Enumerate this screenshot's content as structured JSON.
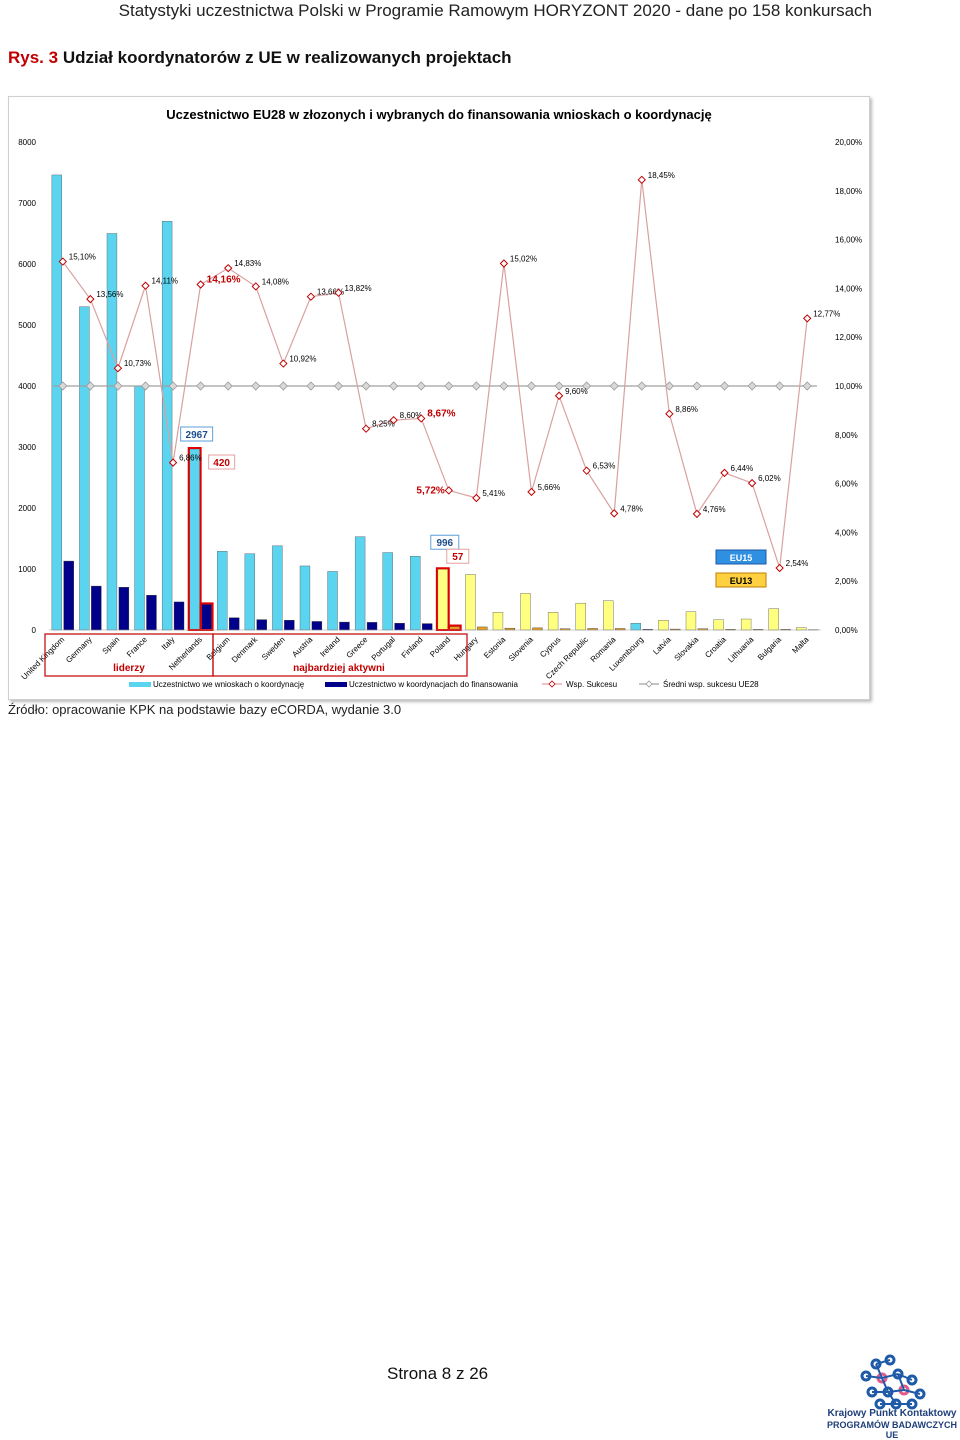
{
  "header": {
    "running_title": "Statystyki uczestnictwa Polski w Programie Ramowym HORYZONT 2020 - dane po 158 konkursach"
  },
  "figure": {
    "label": "Rys. 3",
    "caption": "Udział koordynatorów z UE w realizowanych projektach",
    "source": "Źródło: opracowanie KPK na podstawie bazy eCORDA, wydanie 3.0"
  },
  "footer": {
    "page": "Strona 8 z 26",
    "logo_line1": "Krajowy Punkt Kontaktowy",
    "logo_line2": "PROGRAMÓW BADAWCZYCH UE"
  },
  "chart_data": {
    "type": "bar",
    "title": "Uczestnictwo EU28 w złozonych i wybranych do finansowania wnioskach o koordynację",
    "categories": [
      "United Kingdom",
      "Germany",
      "Spain",
      "France",
      "Italy",
      "Netherlands",
      "Belgium",
      "Denmark",
      "Sweden",
      "Austria",
      "Ireland",
      "Greece",
      "Portugal",
      "Finland",
      "Poland",
      "Hungary",
      "Estonia",
      "Slovenia",
      "Cyprus",
      "Czech Republic",
      "Romania",
      "Luxembourg",
      "Latvia",
      "Slovakia",
      "Croatia",
      "Lithuania",
      "Bulgaria",
      "Malta"
    ],
    "groups": [
      "EU15",
      "EU15",
      "EU15",
      "EU15",
      "EU15",
      "EU15",
      "EU15",
      "EU15",
      "EU15",
      "EU15",
      "EU15",
      "EU15",
      "EU15",
      "EU15",
      "EU13",
      "EU13",
      "EU13",
      "EU13",
      "EU13",
      "EU13",
      "EU13",
      "EU15",
      "EU13",
      "EU13",
      "EU13",
      "EU13",
      "EU13",
      "EU13"
    ],
    "series": [
      {
        "name": "Uczestnictwo we wnioskach o koordynację",
        "axis": "left",
        "values": [
          7460,
          5300,
          6500,
          4000,
          6700,
          2967,
          1290,
          1250,
          1380,
          1050,
          960,
          1530,
          1270,
          1210,
          996,
          910,
          290,
          600,
          290,
          440,
          480,
          110,
          160,
          300,
          170,
          180,
          350,
          40
        ]
      },
      {
        "name": "Uczestnictwo w koordynacjach do finansowania",
        "axis": "left",
        "values": [
          1130,
          720,
          700,
          570,
          460,
          420,
          200,
          170,
          160,
          140,
          130,
          125,
          110,
          105,
          57,
          50,
          30,
          35,
          20,
          25,
          25,
          10,
          15,
          20,
          10,
          10,
          10,
          5
        ]
      },
      {
        "name": "Wsp. Sukcesu",
        "axis": "right",
        "values": [
          15.1,
          13.56,
          10.73,
          14.11,
          6.86,
          14.16,
          14.83,
          14.08,
          10.92,
          13.66,
          13.82,
          8.25,
          8.6,
          8.67,
          5.72,
          5.41,
          15.02,
          5.66,
          9.6,
          6.53,
          4.78,
          18.45,
          8.86,
          4.76,
          6.44,
          6.02,
          2.54,
          12.77
        ],
        "labels": [
          "15,10%",
          "13,56%",
          "10,73%",
          "14,11%",
          "6,86%",
          "14,16%",
          "14,83%",
          "14,08%",
          "10,92%",
          "13,66%",
          "13,82%",
          "8,25%",
          "8,60%",
          "8,67%",
          "5,72%",
          "5,41%",
          "15,02%",
          "5,66%",
          "9,60%",
          "6,53%",
          "4,78%",
          "18,45%",
          "8,86%",
          "4,76%",
          "6,44%",
          "6,02%",
          "2,54%",
          "12,77%"
        ]
      },
      {
        "name": "Średni wsp. sukcesu UE28",
        "axis": "right",
        "value": 10.0
      }
    ],
    "ylim_left": [
      0,
      8000
    ],
    "yticks_left": [
      0,
      1000,
      2000,
      3000,
      4000,
      5000,
      6000,
      7000,
      8000
    ],
    "ylim_right": [
      0,
      20
    ],
    "yticks_right": [
      "0,00%",
      "2,00%",
      "4,00%",
      "6,00%",
      "8,00%",
      "10,00%",
      "12,00%",
      "14,00%",
      "16,00%",
      "18,00%",
      "20,00%"
    ],
    "colors": {
      "eu15_submitted": "#5bd4f0",
      "eu15_funded": "#00008b",
      "eu13_submitted": "#ffff80",
      "eu13_funded": "#e8a020",
      "success_line": "#d9a0a0",
      "success_marker": "#c00000",
      "avg_line": "#a0a0a0",
      "highlight": "#e00000",
      "highlight_label_box": "#1f6fb0"
    },
    "legend": [
      "Uczestnictwo we wnioskach o koordynację",
      "Uczestnictwo w koordynacjach do finansowania",
      "Wsp. Sukcesu",
      "Średni wsp. sukcesu UE28"
    ],
    "legend_position": "bottom",
    "annotations": {
      "netherlands_submitted": "2967",
      "netherlands_funded": "420",
      "poland_submitted": "996",
      "poland_funded": "57",
      "group_leaders": "liderzy",
      "group_active": "najbardziej aktywni",
      "key_eu15": "EU15",
      "key_eu13": "EU13"
    }
  }
}
